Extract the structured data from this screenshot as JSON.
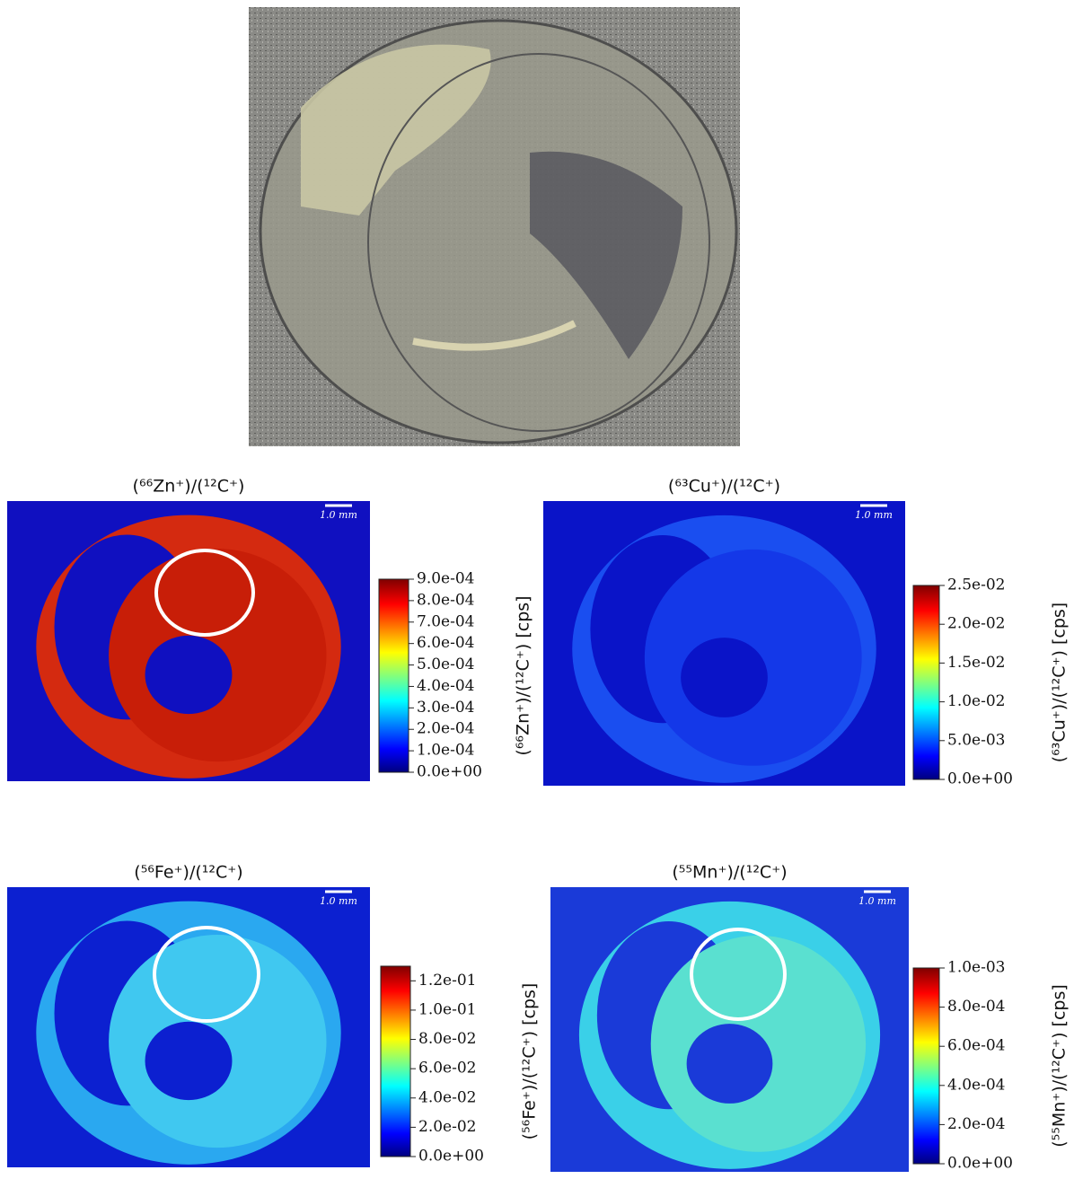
{
  "chart_data": [
    {
      "type": "heatmap",
      "title": "(⁶⁶Zn⁺)/(¹²C⁺)",
      "colorbar_label": "(⁶⁶Zn⁺)/(¹²C⁺)  [cps]",
      "scale_bar": "1.0 mm",
      "clim": [
        0,
        0.0009
      ],
      "cticks": [
        {
          "value": 0,
          "label": "0.0e+00"
        },
        {
          "value": 0.0001,
          "label": "1.0e-04"
        },
        {
          "value": 0.0002,
          "label": "2.0e-04"
        },
        {
          "value": 0.0003,
          "label": "3.0e-04"
        },
        {
          "value": 0.0004,
          "label": "4.0e-04"
        },
        {
          "value": 0.0005,
          "label": "5.0e-04"
        },
        {
          "value": 0.0006,
          "label": "6.0e-04"
        },
        {
          "value": 0.0007,
          "label": "7.0e-04"
        },
        {
          "value": 0.0008,
          "label": "8.0e-04"
        },
        {
          "value": 0.0009,
          "label": "9.0e-04"
        }
      ]
    },
    {
      "type": "heatmap",
      "title": "(⁶³Cu⁺)/(¹²C⁺)",
      "colorbar_label": "(⁶³Cu⁺)/(¹²C⁺)  [cps]",
      "scale_bar": "1.0 mm",
      "clim": [
        0,
        0.025
      ],
      "cticks": [
        {
          "value": 0,
          "label": "0.0e+00"
        },
        {
          "value": 0.005,
          "label": "5.0e-03"
        },
        {
          "value": 0.01,
          "label": "1.0e-02"
        },
        {
          "value": 0.015,
          "label": "1.5e-02"
        },
        {
          "value": 0.02,
          "label": "2.0e-02"
        },
        {
          "value": 0.025,
          "label": "2.5e-02"
        }
      ]
    },
    {
      "type": "heatmap",
      "title": "(⁵⁶Fe⁺)/(¹²C⁺)",
      "colorbar_label": "(⁵⁶Fe⁺)/(¹²C⁺)  [cps]",
      "scale_bar": "1.0 mm",
      "clim": [
        0,
        0.13
      ],
      "cticks": [
        {
          "value": 0,
          "label": "0.0e+00"
        },
        {
          "value": 0.02,
          "label": "2.0e-02"
        },
        {
          "value": 0.04,
          "label": "4.0e-02"
        },
        {
          "value": 0.06,
          "label": "6.0e-02"
        },
        {
          "value": 0.08,
          "label": "8.0e-02"
        },
        {
          "value": 0.1,
          "label": "1.0e-01"
        },
        {
          "value": 0.12,
          "label": "1.2e-01"
        }
      ]
    },
    {
      "type": "heatmap",
      "title": "(⁵⁵Mn⁺)/(¹²C⁺)",
      "colorbar_label": "(⁵⁵Mn⁺)/(¹²C⁺)  [cps]",
      "scale_bar": "1.0 mm",
      "clim": [
        0,
        0.001
      ],
      "cticks": [
        {
          "value": 0,
          "label": "0.0e+00"
        },
        {
          "value": 0.0002,
          "label": "2.0e-04"
        },
        {
          "value": 0.0004,
          "label": "4.0e-04"
        },
        {
          "value": 0.0006,
          "label": "6.0e-04"
        },
        {
          "value": 0.0008,
          "label": "8.0e-04"
        },
        {
          "value": 0.001,
          "label": "1.0e-03"
        }
      ]
    }
  ]
}
